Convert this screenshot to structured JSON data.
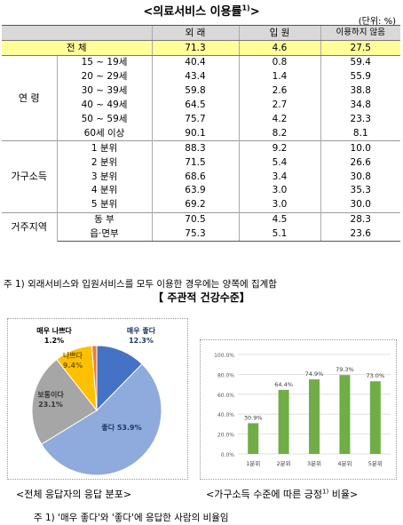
{
  "title": "<의료서비스 이용률",
  "title_sup": "1)",
  "title_tail": ">",
  "unit": "(단위: %)",
  "table": {
    "headers": [
      "외 래",
      "입 원",
      "이용하지 않음"
    ],
    "total": {
      "label": "전   체",
      "values": [
        "71.3",
        "4.6",
        "27.5"
      ]
    },
    "groups": [
      {
        "name": "연   령",
        "rows": [
          {
            "label": "15 ~ 19세",
            "values": [
              "40.4",
              "0.8",
              "59.4"
            ]
          },
          {
            "label": "20 ~ 29세",
            "values": [
              "43.4",
              "1.4",
              "55.9"
            ]
          },
          {
            "label": "30 ~ 39세",
            "values": [
              "59.8",
              "2.6",
              "38.8"
            ]
          },
          {
            "label": "40 ~ 49세",
            "values": [
              "64.5",
              "2.7",
              "34.8"
            ]
          },
          {
            "label": "50 ~ 59세",
            "values": [
              "75.7",
              "4.2",
              "23.3"
            ]
          },
          {
            "label": "60세 이상",
            "values": [
              "90.1",
              "8.2",
              "8.1"
            ]
          }
        ]
      },
      {
        "name": "가구소득",
        "rows": [
          {
            "label": "1 분위",
            "values": [
              "88.3",
              "9.2",
              "10.0"
            ]
          },
          {
            "label": "2 분위",
            "values": [
              "71.5",
              "5.4",
              "26.6"
            ]
          },
          {
            "label": "3 분위",
            "values": [
              "68.6",
              "3.4",
              "30.8"
            ]
          },
          {
            "label": "4 분위",
            "values": [
              "63.9",
              "3.0",
              "35.3"
            ]
          },
          {
            "label": "5 분위",
            "values": [
              "69.2",
              "3.0",
              "30.0"
            ]
          }
        ]
      },
      {
        "name": "거주지역",
        "rows": [
          {
            "label": "동   부",
            "values": [
              "70.5",
              "4.5",
              "28.3"
            ]
          },
          {
            "label": "읍·면부",
            "values": [
              "75.3",
              "5.1",
              "23.6"
            ]
          }
        ]
      }
    ]
  },
  "note1": "주 1) 외래서비스와 입원서비스를 모두 이용한 경우에는 양쪽에 집계함",
  "section2_title": "【 주관적 건강수준】",
  "chart_data": [
    {
      "type": "pie",
      "slices": [
        {
          "label": "매우 좋다",
          "value": 12.3,
          "color": "#4472c4",
          "text": "매우 좋다\n12.3%"
        },
        {
          "label": "좋다",
          "value": 53.9,
          "color": "#8faadc",
          "text": "좋다 53.9%"
        },
        {
          "label": "보통이다",
          "value": 23.1,
          "color": "#a6a6a6",
          "text": "보통이다\n23.1%"
        },
        {
          "label": "나쁘다",
          "value": 9.4,
          "color": "#ffc000",
          "text": "나쁘다\n9.4%"
        },
        {
          "label": "매우 나쁘다",
          "value": 1.2,
          "color": "#ed7d31",
          "text": "매우 나쁘다\n1.2%"
        }
      ]
    },
    {
      "type": "bar",
      "categories": [
        "1분위",
        "2분위",
        "3분위",
        "4분위",
        "5분위"
      ],
      "values": [
        30.9,
        64.4,
        74.9,
        79.3,
        73.0
      ],
      "value_labels": [
        "30.9%",
        "64.4%",
        "74.9%",
        "79.3%",
        "73.0%"
      ],
      "ylim": [
        0,
        100
      ],
      "yticks": [
        "0.0%",
        "20.0%",
        "40.0%",
        "60.0%",
        "80.0%",
        "100.0%"
      ],
      "color": "#70ad47",
      "grid": true
    }
  ],
  "caption_left": "<전체 응답자의 응답 분포>",
  "caption_right": "<가구소득 수준에 따른 긍정",
  "caption_right_sup": "1)",
  "caption_right_tail": " 비율>",
  "note2": "주 1) '매우 좋다'와 '좋다'에 응답한 사람의 비율임"
}
